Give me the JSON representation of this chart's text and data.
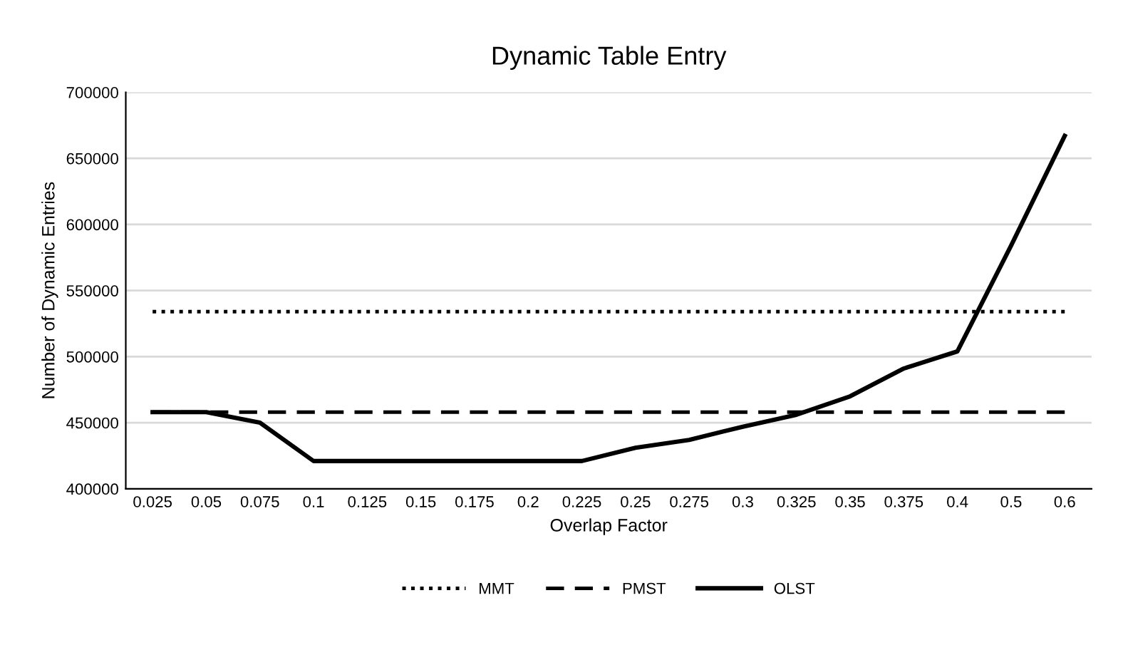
{
  "chart_data": {
    "type": "line",
    "title": "Dynamic Table Entry",
    "xlabel": "Overlap Factor",
    "ylabel": "Number of Dynamic Entries",
    "categories": [
      "0.025",
      "0.05",
      "0.075",
      "0.1",
      "0.125",
      "0.15",
      "0.175",
      "0.2",
      "0.225",
      "0.25",
      "0.275",
      "0.3",
      "0.325",
      "0.35",
      "0.375",
      "0.4",
      "0.5",
      "0.6"
    ],
    "series": [
      {
        "name": "MMT",
        "color": "#000000",
        "line_style": "dotted",
        "values": [
          534000,
          534000,
          534000,
          534000,
          534000,
          534000,
          534000,
          534000,
          534000,
          534000,
          534000,
          534000,
          534000,
          534000,
          534000,
          534000,
          534000,
          534000
        ]
      },
      {
        "name": "PMST",
        "color": "#000000",
        "line_style": "dashed",
        "values": [
          458000,
          458000,
          458000,
          458000,
          458000,
          458000,
          458000,
          458000,
          458000,
          458000,
          458000,
          458000,
          458000,
          458000,
          458000,
          458000,
          458000,
          458000
        ]
      },
      {
        "name": "OLST",
        "color": "#000000",
        "line_style": "solid",
        "values": [
          458000,
          458000,
          450000,
          421000,
          421000,
          421000,
          421000,
          421000,
          421000,
          431000,
          437000,
          447000,
          456000,
          470000,
          491000,
          504000,
          584000,
          667000
        ]
      }
    ],
    "ylim": [
      400000,
      700000
    ],
    "yticks": [
      400000,
      450000,
      500000,
      550000,
      600000,
      650000,
      700000
    ],
    "grid": "y",
    "legend": "bottom",
    "marker": "none"
  }
}
